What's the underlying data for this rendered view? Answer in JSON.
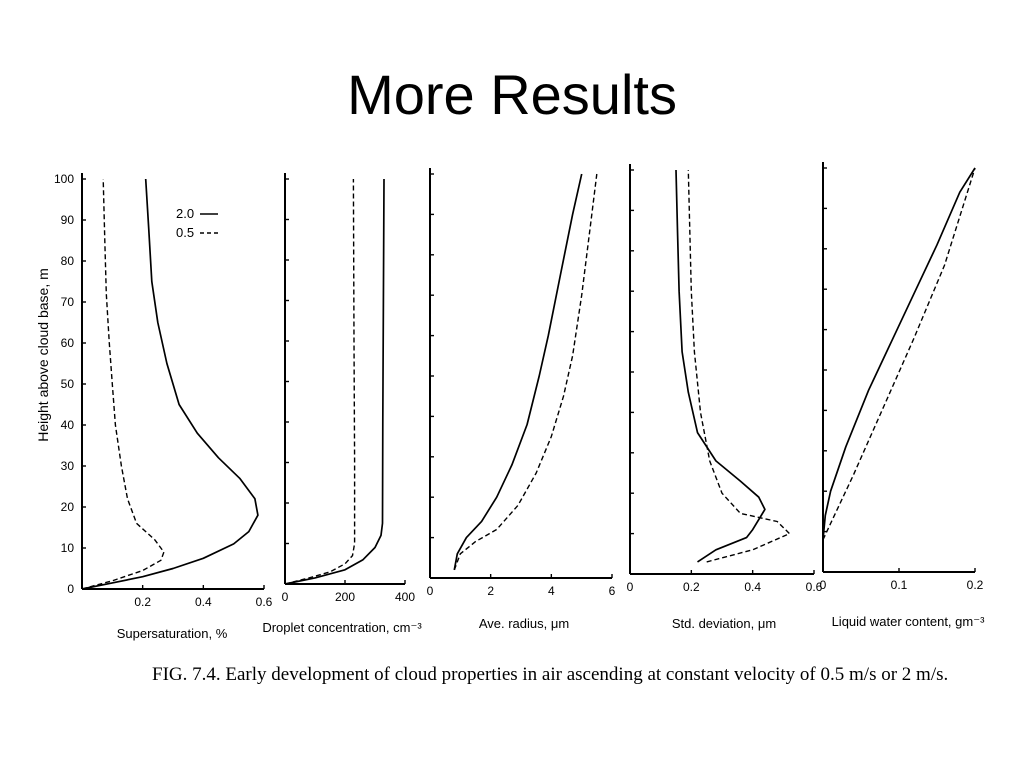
{
  "slide_title": "More Results",
  "caption": "FIG. 7.4. Early development of cloud properties in air ascending at constant velocity of 0.5 m/s or 2 m/s.",
  "legend": [
    {
      "label": "2.0",
      "style": "solid"
    },
    {
      "label": "0.5",
      "style": "dashed"
    }
  ],
  "chart_data": [
    {
      "type": "line",
      "panel": "supersaturation",
      "xlabel": "Supersaturation, %",
      "ylabel": "Height above cloud base, m",
      "xlim": [
        0,
        0.6
      ],
      "ylim": [
        0,
        100
      ],
      "x_ticks": [
        0.2,
        0.4,
        0.6
      ],
      "y_ticks": [
        0,
        10,
        20,
        30,
        40,
        50,
        60,
        70,
        80,
        90,
        100
      ],
      "series": [
        {
          "name": "2.0",
          "style": "solid",
          "x": [
            0.0,
            0.1,
            0.2,
            0.3,
            0.4,
            0.5,
            0.55,
            0.58,
            0.57,
            0.52,
            0.45,
            0.38,
            0.32,
            0.28,
            0.25,
            0.23,
            0.22,
            0.21
          ],
          "y": [
            0,
            1.5,
            3,
            5,
            7.5,
            11,
            14,
            18,
            22,
            27,
            32,
            38,
            45,
            55,
            65,
            75,
            88,
            100
          ]
        },
        {
          "name": "0.5",
          "style": "dashed",
          "x": [
            0.0,
            0.1,
            0.2,
            0.26,
            0.27,
            0.24,
            0.18,
            0.15,
            0.13,
            0.11,
            0.1,
            0.09,
            0.08,
            0.075,
            0.07
          ],
          "y": [
            0,
            2,
            4.5,
            7,
            9,
            12,
            16,
            22,
            30,
            40,
            50,
            60,
            72,
            85,
            100
          ]
        }
      ]
    },
    {
      "type": "line",
      "panel": "droplet-concentration",
      "xlabel": "Droplet concentration, cm⁻³",
      "xlim": [
        0,
        400
      ],
      "ylim": [
        0,
        100
      ],
      "x_ticks": [
        0,
        200,
        400
      ],
      "series": [
        {
          "name": "2.0",
          "style": "solid",
          "x": [
            0,
            100,
            200,
            260,
            300,
            320,
            325,
            326,
            328,
            330
          ],
          "y": [
            0,
            1.5,
            3.5,
            6,
            9,
            12,
            15,
            40,
            70,
            100
          ]
        },
        {
          "name": "0.5",
          "style": "dashed",
          "x": [
            0,
            80,
            150,
            200,
            225,
            232,
            232,
            230,
            228
          ],
          "y": [
            0,
            1.5,
            3,
            5,
            7,
            10,
            30,
            60,
            100
          ]
        }
      ]
    },
    {
      "type": "line",
      "panel": "ave-radius",
      "xlabel": "Ave. radius, μm",
      "xlim": [
        0,
        6
      ],
      "ylim": [
        0,
        100
      ],
      "x_ticks": [
        0,
        2,
        4,
        6
      ],
      "series": [
        {
          "name": "2.0",
          "style": "solid",
          "x": [
            0.8,
            0.9,
            1.2,
            1.7,
            2.2,
            2.7,
            3.2,
            3.6,
            3.9,
            4.3,
            4.7,
            5.0
          ],
          "y": [
            2,
            6,
            10,
            14,
            20,
            28,
            38,
            50,
            60,
            75,
            90,
            100
          ]
        },
        {
          "name": "0.5",
          "style": "dashed",
          "x": [
            0.8,
            1.0,
            1.5,
            2.2,
            2.9,
            3.5,
            4.0,
            4.4,
            4.7,
            5.0,
            5.3,
            5.5
          ],
          "y": [
            2,
            6,
            9,
            12,
            18,
            26,
            35,
            45,
            55,
            70,
            88,
            100
          ]
        }
      ]
    },
    {
      "type": "line",
      "panel": "std-deviation",
      "xlabel": "Std. deviation, μm",
      "xlim": [
        0,
        0.6
      ],
      "ylim": [
        0,
        100
      ],
      "x_ticks": [
        0,
        0.2,
        0.4,
        0.6
      ],
      "series": [
        {
          "name": "2.0",
          "style": "solid",
          "x": [
            0.22,
            0.28,
            0.38,
            0.4,
            0.44,
            0.42,
            0.36,
            0.28,
            0.22,
            0.19,
            0.17,
            0.16,
            0.155,
            0.15
          ],
          "y": [
            3,
            6,
            9,
            11,
            16,
            19,
            23,
            28,
            35,
            45,
            55,
            70,
            85,
            100
          ]
        },
        {
          "name": "0.5",
          "style": "dashed",
          "x": [
            0.25,
            0.4,
            0.52,
            0.48,
            0.36,
            0.3,
            0.26,
            0.23,
            0.21,
            0.2,
            0.195,
            0.19
          ],
          "y": [
            3,
            6,
            10,
            13,
            15,
            20,
            28,
            40,
            55,
            70,
            85,
            100
          ]
        }
      ]
    },
    {
      "type": "line",
      "panel": "liquid-water-content",
      "xlabel": "Liquid water content, gm⁻³",
      "xlim": [
        0,
        0.2
      ],
      "ylim": [
        0,
        100
      ],
      "x_ticks": [
        0,
        0.1,
        0.2
      ],
      "series": [
        {
          "name": "2.0",
          "style": "solid",
          "x": [
            0,
            0.003,
            0.01,
            0.03,
            0.06,
            0.09,
            0.12,
            0.15,
            0.18,
            0.2
          ],
          "y": [
            8,
            14,
            20,
            31,
            45,
            57,
            69,
            81,
            94,
            100
          ]
        },
        {
          "name": "0.5",
          "style": "dashed",
          "x": [
            0,
            0.01,
            0.04,
            0.08,
            0.12,
            0.16,
            0.2
          ],
          "y": [
            8,
            12,
            24,
            41,
            58,
            76,
            100
          ]
        }
      ]
    }
  ]
}
